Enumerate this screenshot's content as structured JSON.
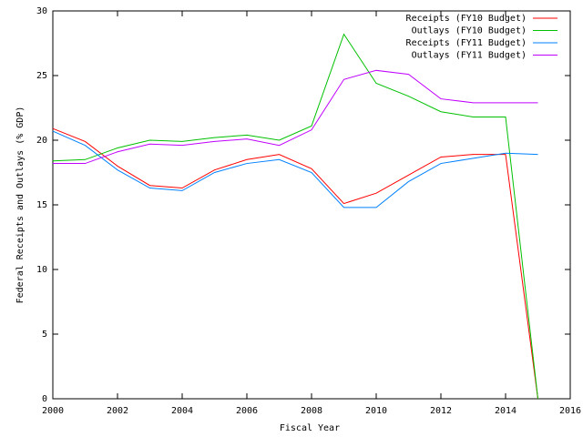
{
  "chart_data": {
    "type": "line",
    "x_label": "Fiscal Year",
    "y_label": "Federal Receipts and Outlays (% GDP)",
    "x": [
      2000,
      2001,
      2002,
      2003,
      2004,
      2005,
      2006,
      2007,
      2008,
      2009,
      2010,
      2011,
      2012,
      2013,
      2014,
      2015
    ],
    "series": [
      {
        "name": "Receipts (FY10 Budget)",
        "color": "#ff0000",
        "values": [
          20.9,
          19.9,
          18.0,
          16.5,
          16.3,
          17.7,
          18.5,
          18.9,
          17.8,
          15.1,
          15.9,
          17.3,
          18.7,
          18.9,
          18.9,
          0
        ]
      },
      {
        "name": "Outlays (FY10 Budget)",
        "color": "#00c000",
        "values": [
          18.4,
          18.5,
          19.4,
          20.0,
          19.9,
          20.2,
          20.4,
          20.0,
          21.1,
          28.2,
          24.4,
          23.4,
          22.2,
          21.8,
          21.8,
          0
        ]
      },
      {
        "name": "Receipts (FY11 Budget)",
        "color": "#0080ff",
        "values": [
          20.7,
          19.6,
          17.7,
          16.3,
          16.1,
          17.5,
          18.2,
          18.5,
          17.5,
          14.8,
          14.8,
          16.8,
          18.2,
          18.6,
          19.0,
          18.9
        ]
      },
      {
        "name": "Outlays (FY11 Budget)",
        "color": "#c000ff",
        "values": [
          18.2,
          18.2,
          19.1,
          19.7,
          19.6,
          19.9,
          20.1,
          19.6,
          20.8,
          24.7,
          25.4,
          25.1,
          23.2,
          22.9,
          22.9,
          22.9
        ]
      }
    ],
    "xlim": [
      2000,
      2016
    ],
    "xticks": [
      2000,
      2002,
      2004,
      2006,
      2008,
      2010,
      2012,
      2014,
      2016
    ],
    "ylim": [
      0,
      30
    ],
    "yticks": [
      0,
      5,
      10,
      15,
      20,
      25,
      30
    ],
    "grid": false,
    "legend": "top-right"
  }
}
